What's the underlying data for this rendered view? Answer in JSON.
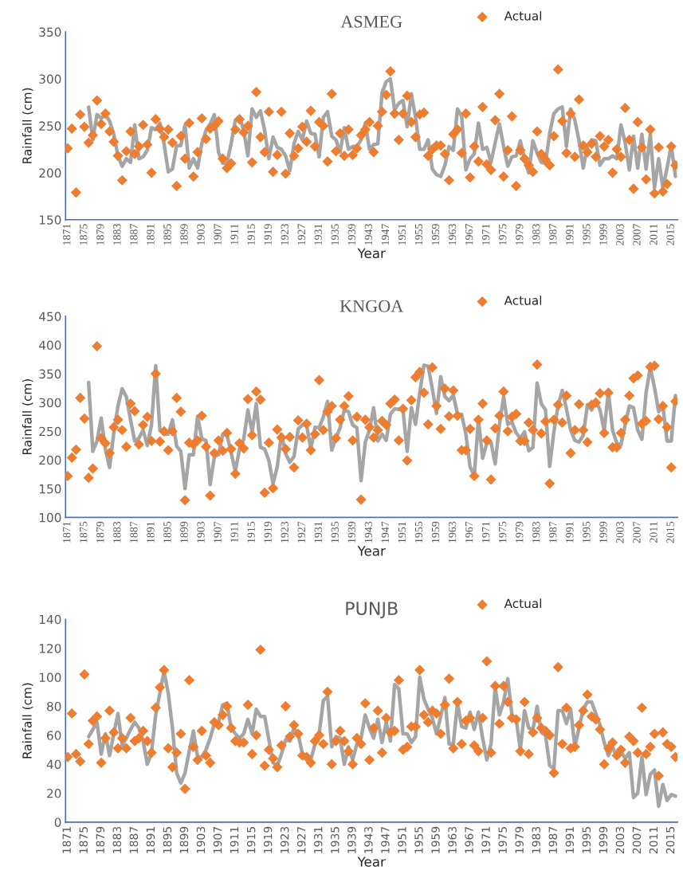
{
  "chart_data": [
    {
      "type": "scatter",
      "title": "ASMEG",
      "xlabel": "Year",
      "ylabel": "Rainfall (cm)",
      "legend": "top right",
      "grid": false,
      "ylim": [
        150,
        350
      ],
      "yticks": [
        150,
        200,
        250,
        300,
        350
      ],
      "categories": [
        "1871",
        null,
        null,
        null,
        "1875",
        null,
        null,
        null,
        "1879",
        null,
        null,
        null,
        "1883",
        null,
        null,
        null,
        "1887",
        null,
        null,
        null,
        "1891",
        null,
        null,
        null,
        "1895",
        null,
        null,
        null,
        "1899",
        null,
        null,
        null,
        "1903",
        null,
        null,
        null,
        "1907",
        null,
        null,
        null,
        "1911",
        null,
        null,
        null,
        "1915",
        null,
        null,
        null,
        "1919",
        null,
        null,
        null,
        "1923",
        null,
        null,
        null,
        "1927",
        null,
        null,
        null,
        "1931",
        null,
        null,
        null,
        "1935",
        null,
        null,
        null,
        "1939",
        null,
        null,
        null,
        "1943",
        null,
        null,
        null,
        "1947",
        null,
        null,
        null,
        "1951",
        null,
        null,
        null,
        "1955",
        null,
        null,
        null,
        "1959",
        null,
        null,
        null,
        "1963",
        null,
        null,
        null,
        "1967",
        null,
        null,
        null,
        "1971",
        null,
        null,
        null,
        "1975",
        null,
        null,
        null,
        "1979",
        null,
        null,
        null,
        "1983",
        null,
        null,
        null,
        "1987",
        null,
        null,
        null,
        "1991",
        null,
        null,
        null,
        "1995",
        null,
        null,
        null,
        "1999",
        null,
        null,
        null,
        "2003",
        null,
        null,
        null,
        "2007",
        null,
        null,
        null,
        "2011",
        null,
        null,
        null,
        "2015",
        null
      ],
      "series": [
        {
          "type": "line",
          "color": "#a5a5a5",
          "marker": "none",
          "values": [
            null,
            null,
            null,
            null,
            null,
            270,
            235,
            262,
            258,
            262,
            255,
            241,
            218,
            207,
            215,
            211,
            251,
            215,
            217,
            224,
            248,
            246,
            253,
            231,
            201,
            204,
            229,
            229,
            251,
            205,
            215,
            205,
            231,
            245,
            252,
            262,
            222,
            210,
            210,
            231,
            256,
            260,
            245,
            218,
            268,
            259,
            266,
            245,
            215,
            238,
            227,
            225,
            218,
            202,
            231,
            244,
            235,
            255,
            242,
            241,
            217,
            259,
            265,
            239,
            235,
            222,
            248,
            225,
            228,
            228,
            235,
            253,
            225,
            230,
            231,
            285,
            297,
            300,
            267,
            274,
            277,
            249,
            284,
            259,
            225,
            225,
            235,
            204,
            198,
            196,
            208,
            228,
            224,
            268,
            260,
            203,
            215,
            220,
            253,
            225,
            227,
            211,
            232,
            252,
            228,
            207,
            217,
            218,
            234,
            214,
            200,
            234,
            221,
            211,
            210,
            242,
            263,
            268,
            270,
            228,
            268,
            256,
            234,
            205,
            228,
            235,
            234,
            208,
            215,
            215,
            218,
            215,
            251,
            232,
            203,
            239,
            205,
            241,
            204,
            241,
            184,
            215,
            184,
            205,
            229,
            196
          ]
        },
        {
          "name": "Actual",
          "color": "#ed7d31",
          "marker": "diamond",
          "values": [
            226,
            247,
            179,
            262,
            249,
            232,
            240,
            277,
            252,
            263,
            244,
            233,
            218,
            192,
            223,
            244,
            220,
            228,
            251,
            230,
            200,
            257,
            247,
            238,
            246,
            232,
            186,
            239,
            215,
            253,
            196,
            222,
            258,
            236,
            247,
            250,
            255,
            215,
            205,
            210,
            246,
            257,
            243,
            250,
            211,
            286,
            238,
            222,
            265,
            201,
            219,
            265,
            199,
            242,
            218,
            226,
            249,
            233,
            266,
            228,
            254,
            250,
            212,
            284,
            223,
            242,
            218,
            246,
            219,
            226,
            240,
            246,
            254,
            222,
            250,
            265,
            283,
            308,
            263,
            235,
            263,
            282,
            254,
            238,
            262,
            264,
            218,
            225,
            229,
            229,
            220,
            192,
            241,
            246,
            221,
            263,
            195,
            228,
            212,
            270,
            209,
            203,
            256,
            284,
            196,
            224,
            260,
            186,
            224,
            215,
            208,
            201,
            244,
            220,
            214,
            208,
            239,
            310,
            255,
            221,
            263,
            217,
            278,
            229,
            222,
            231,
            217,
            239,
            228,
            235,
            200,
            225,
            217,
            269,
            235,
            183,
            254,
            227,
            193,
            246,
            178,
            227,
            180,
            188,
            228,
            208
          ]
        }
      ]
    },
    {
      "type": "scatter",
      "title": "KNGOA",
      "xlabel": "Year",
      "ylabel": "Rainfall (cm)",
      "legend": "top right",
      "grid": false,
      "ylim": [
        100,
        450
      ],
      "yticks": [
        100,
        150,
        200,
        250,
        300,
        350,
        400,
        450
      ],
      "categories": [
        "1871",
        null,
        null,
        null,
        "1875",
        null,
        null,
        null,
        "1879",
        null,
        null,
        null,
        "1883",
        null,
        null,
        null,
        "1887",
        null,
        null,
        null,
        "1891",
        null,
        null,
        null,
        "1895",
        null,
        null,
        null,
        "1899",
        null,
        null,
        null,
        "1903",
        null,
        null,
        null,
        "1907",
        null,
        null,
        null,
        "1911",
        null,
        null,
        null,
        "1915",
        null,
        null,
        null,
        "1919",
        null,
        null,
        null,
        "1923",
        null,
        null,
        null,
        "1927",
        null,
        null,
        null,
        "1931",
        null,
        null,
        null,
        "1935",
        null,
        null,
        null,
        "1939",
        null,
        null,
        null,
        "1943",
        null,
        null,
        null,
        "1947",
        null,
        null,
        null,
        "1951",
        null,
        null,
        null,
        "1955",
        null,
        null,
        null,
        "1959",
        null,
        null,
        null,
        "1963",
        null,
        null,
        null,
        "1967",
        null,
        null,
        null,
        "1971",
        null,
        null,
        null,
        "1975",
        null,
        null,
        null,
        "1979",
        null,
        null,
        null,
        "1983",
        null,
        null,
        null,
        "1987",
        null,
        null,
        null,
        "1991",
        null,
        null,
        null,
        "1995",
        null,
        null,
        null,
        "1999",
        null,
        null,
        null,
        "2003",
        null,
        null,
        null,
        "2007",
        null,
        null,
        null,
        "2011",
        null,
        null,
        null,
        "2015",
        null
      ],
      "series": [
        {
          "type": "line",
          "color": "#a5a5a5",
          "marker": "none",
          "values": [
            null,
            null,
            null,
            null,
            null,
            335,
            215,
            233,
            273,
            219,
            187,
            247,
            294,
            324,
            310,
            270,
            233,
            238,
            252,
            225,
            261,
            364,
            252,
            245,
            245,
            270,
            224,
            215,
            150,
            209,
            209,
            276,
            237,
            234,
            157,
            206,
            209,
            245,
            244,
            213,
            180,
            219,
            236,
            287,
            248,
            298,
            222,
            219,
            199,
            159,
            188,
            245,
            211,
            196,
            206,
            254,
            261,
            261,
            219,
            257,
            256,
            275,
            302,
            217,
            238,
            256,
            287,
            284,
            261,
            256,
            164,
            231,
            252,
            291,
            233,
            245,
            234,
            280,
            289,
            288,
            287,
            215,
            291,
            262,
            317,
            365,
            363,
            324,
            281,
            345,
            310,
            303,
            313,
            280,
            279,
            245,
            188,
            173,
            270,
            203,
            229,
            231,
            193,
            261,
            310,
            262,
            266,
            247,
            238,
            249,
            216,
            222,
            334,
            298,
            287,
            189,
            249,
            294,
            321,
            289,
            252,
            234,
            231,
            243,
            296,
            287,
            303,
            287,
            252,
            319,
            252,
            229,
            226,
            261,
            294,
            291,
            252,
            236,
            317,
            361,
            326,
            284,
            294,
            233,
            233,
            312
          ]
        },
        {
          "name": "Actual",
          "color": "#ed7d31",
          "marker": "diamond",
          "values": [
            172,
            204,
            218,
            308,
            272,
            169,
            185,
            398,
            238,
            229,
            212,
            257,
            270,
            252,
            223,
            298,
            285,
            227,
            261,
            275,
            233,
            350,
            232,
            250,
            217,
            250,
            308,
            284,
            130,
            230,
            227,
            234,
            277,
            223,
            138,
            212,
            234,
            216,
            247,
            219,
            176,
            229,
            220,
            306,
            243,
            319,
            305,
            143,
            230,
            151,
            253,
            239,
            219,
            240,
            187,
            269,
            239,
            263,
            217,
            245,
            339,
            252,
            284,
            294,
            238,
            270,
            294,
            311,
            234,
            275,
            131,
            270,
            257,
            239,
            252,
            268,
            261,
            298,
            305,
            234,
            289,
            199,
            304,
            344,
            353,
            317,
            262,
            361,
            294,
            254,
            324,
            276,
            321,
            277,
            217,
            217,
            254,
            172,
            270,
            298,
            234,
            166,
            255,
            277,
            319,
            250,
            275,
            280,
            233,
            233,
            265,
            252,
            366,
            246,
            267,
            159,
            270,
            296,
            265,
            312,
            212,
            252,
            297,
            252,
            231,
            296,
            300,
            316,
            247,
            317,
            222,
            222,
            247,
            270,
            312,
            342,
            347,
            263,
            268,
            362,
            364,
            271,
            294,
            257,
            187,
            302
          ]
        }
      ]
    },
    {
      "type": "scatter",
      "title": "PUNJB",
      "xlabel": "Year",
      "ylabel": "Rainfall (cm)",
      "legend": "top right",
      "grid": false,
      "ylim": [
        0,
        140
      ],
      "yticks": [
        0,
        20,
        40,
        60,
        80,
        100,
        120,
        140
      ],
      "categories": [
        "1871",
        null,
        null,
        null,
        "1875",
        null,
        null,
        null,
        "1879",
        null,
        null,
        null,
        "1883",
        null,
        null,
        null,
        "1887",
        null,
        null,
        null,
        "1891",
        null,
        null,
        null,
        "1895",
        null,
        null,
        null,
        "1899",
        null,
        null,
        null,
        "1903",
        null,
        null,
        null,
        "1907",
        null,
        null,
        null,
        "1911",
        null,
        null,
        null,
        "1915",
        null,
        null,
        null,
        "1919",
        null,
        null,
        null,
        "1923",
        null,
        null,
        null,
        "1927",
        null,
        null,
        null,
        "1931",
        null,
        null,
        null,
        "1935",
        null,
        null,
        null,
        "1939",
        null,
        null,
        null,
        "1943",
        null,
        null,
        null,
        "1947",
        null,
        null,
        null,
        "1951",
        null,
        null,
        null,
        "1955",
        null,
        null,
        null,
        "1959",
        null,
        null,
        null,
        "1963",
        null,
        null,
        null,
        "1967",
        null,
        null,
        null,
        "1971",
        null,
        null,
        null,
        "1975",
        null,
        null,
        null,
        "1979",
        null,
        null,
        null,
        "1983",
        null,
        null,
        null,
        "1987",
        null,
        null,
        null,
        "1991",
        null,
        null,
        null,
        "1995",
        null,
        null,
        null,
        "1999",
        null,
        null,
        null,
        "2003",
        null,
        null,
        null,
        "2007",
        null,
        null,
        null,
        "2011",
        null,
        null,
        null,
        "2015",
        null
      ],
      "series": [
        {
          "type": "line",
          "color": "#a5a5a5",
          "marker": "none",
          "values": [
            null,
            null,
            null,
            null,
            null,
            59,
            64,
            69,
            47,
            61,
            46,
            61,
            75,
            53,
            58,
            64,
            69,
            65,
            56,
            40,
            48,
            74,
            89,
            104,
            89,
            65,
            34,
            27,
            34,
            49,
            63,
            45,
            45,
            50,
            58,
            68,
            69,
            81,
            82,
            65,
            61,
            58,
            61,
            71,
            61,
            78,
            73,
            73,
            57,
            41,
            39,
            47,
            57,
            56,
            65,
            61,
            47,
            45,
            43,
            54,
            61,
            84,
            87,
            52,
            59,
            58,
            40,
            52,
            43,
            54,
            58,
            74,
            65,
            58,
            71,
            55,
            69,
            56,
            95,
            92,
            61,
            61,
            55,
            59,
            100,
            85,
            78,
            72,
            61,
            73,
            86,
            54,
            54,
            82,
            66,
            65,
            76,
            64,
            76,
            58,
            43,
            54,
            93,
            74,
            83,
            99,
            74,
            71,
            50,
            77,
            65,
            64,
            80,
            62,
            60,
            39,
            37,
            77,
            77,
            68,
            78,
            52,
            65,
            78,
            83,
            83,
            75,
            67,
            55,
            46,
            52,
            45,
            49,
            44,
            48,
            17,
            20,
            45,
            19,
            33,
            36,
            11,
            26,
            15,
            19,
            18
          ]
        },
        {
          "name": "Actual",
          "color": "#ed7d31",
          "marker": "diamond",
          "values": [
            45,
            75,
            47,
            42,
            102,
            54,
            70,
            73,
            41,
            58,
            77,
            62,
            51,
            58,
            51,
            72,
            56,
            58,
            63,
            56,
            48,
            79,
            93,
            105,
            51,
            38,
            48,
            61,
            23,
            98,
            52,
            43,
            63,
            46,
            41,
            69,
            67,
            74,
            80,
            65,
            56,
            55,
            55,
            81,
            47,
            60,
            119,
            39,
            50,
            44,
            38,
            53,
            80,
            59,
            67,
            61,
            46,
            45,
            41,
            56,
            60,
            54,
            90,
            40,
            56,
            63,
            56,
            49,
            40,
            58,
            54,
            82,
            43,
            65,
            77,
            48,
            72,
            62,
            63,
            98,
            50,
            52,
            66,
            66,
            105,
            74,
            69,
            77,
            75,
            61,
            81,
            99,
            51,
            83,
            54,
            70,
            72,
            53,
            49,
            72,
            111,
            48,
            94,
            68,
            94,
            83,
            72,
            71,
            49,
            83,
            47,
            62,
            72,
            65,
            63,
            60,
            34,
            107,
            54,
            79,
            51,
            52,
            67,
            77,
            88,
            73,
            71,
            64,
            40,
            51,
            55,
            46,
            50,
            41,
            59,
            56,
            48,
            79,
            47,
            52,
            61,
            32,
            62,
            54,
            52,
            45
          ]
        }
      ]
    }
  ]
}
